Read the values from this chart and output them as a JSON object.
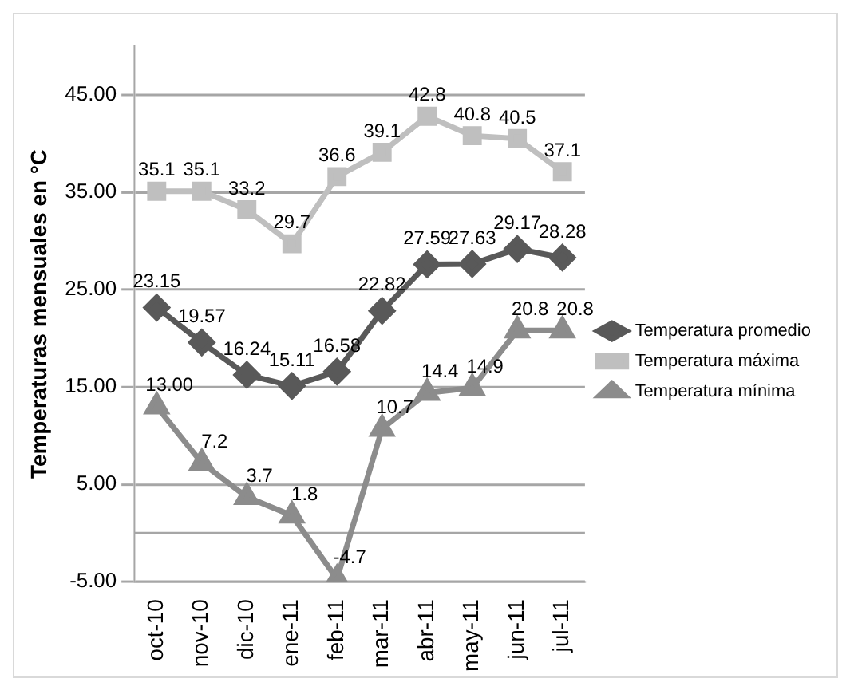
{
  "chart_data": {
    "type": "line",
    "ylabel": "Temperaturas mensuales en °C",
    "categories": [
      "oct-10",
      "nov-10",
      "dic-10",
      "ene-11",
      "feb-11",
      "mar-11",
      "abr-11",
      "may-11",
      "jun-11",
      "jul-11"
    ],
    "series": [
      {
        "name": "Temperatura promedio",
        "color": "#595959",
        "marker": "diamond",
        "values": [
          23.15,
          19.57,
          16.24,
          15.11,
          16.58,
          22.82,
          27.59,
          27.63,
          29.17,
          28.28
        ],
        "value_labels": [
          "23.15",
          "19.57",
          "16.24",
          "15.11",
          "16.58",
          "22.82",
          "27.59",
          "27.63",
          "29.17",
          "28.28"
        ]
      },
      {
        "name": "Temperatura máxima",
        "color": "#bfbfbf",
        "marker": "square",
        "values": [
          35.1,
          35.1,
          33.2,
          29.7,
          36.6,
          39.1,
          42.8,
          40.8,
          40.5,
          37.1
        ],
        "value_labels": [
          "35.1",
          "35.1",
          "33.2",
          "29.7",
          "36.6",
          "39.1",
          "42.8",
          "40.8",
          "40.5",
          "37.1"
        ]
      },
      {
        "name": "Temperatura mínima",
        "color": "#8c8c8c",
        "marker": "triangle",
        "values": [
          13.0,
          7.2,
          3.7,
          1.8,
          -4.7,
          10.7,
          14.4,
          14.9,
          20.8,
          20.8
        ],
        "value_labels": [
          "13.00",
          "7.2",
          "3.7",
          "1.8",
          "-4.7",
          "10.7",
          "14.4",
          "14.9",
          "20.8",
          "20.8"
        ]
      }
    ],
    "ylim": [
      -5,
      50
    ],
    "yticks": [
      {
        "value": -5,
        "label": "-5.00"
      },
      {
        "value": 5,
        "label": "5.00"
      },
      {
        "value": 15,
        "label": "15.00"
      },
      {
        "value": 25,
        "label": "25.00"
      },
      {
        "value": 35,
        "label": "35.00"
      },
      {
        "value": 45,
        "label": "45.00"
      }
    ],
    "ref_lines": [
      {
        "axis": "y",
        "value": 0,
        "color": "#a6a6a6"
      }
    ],
    "grid": "y",
    "legend": "right",
    "line_style": "solid"
  }
}
